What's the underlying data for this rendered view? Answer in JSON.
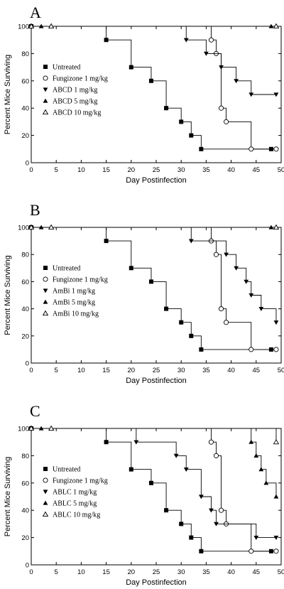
{
  "chart_data": [
    {
      "type": "line",
      "panel_label": "A",
      "xlabel": "Day Postinfection",
      "ylabel": "Percent Mice Surviving",
      "xlim": [
        0,
        50
      ],
      "ylim": [
        0,
        100
      ],
      "xticks": [
        0,
        5,
        10,
        15,
        20,
        25,
        30,
        35,
        40,
        45,
        50
      ],
      "yticks": [
        0,
        20,
        40,
        60,
        80,
        100
      ],
      "step": true,
      "legend_position": "left-middle",
      "series": [
        {
          "name": "Untreated",
          "marker": "square-filled",
          "x": [
            0,
            15,
            20,
            24,
            27,
            30,
            32,
            34,
            48
          ],
          "y": [
            100,
            90,
            70,
            60,
            40,
            30,
            20,
            10,
            10
          ]
        },
        {
          "name": "Fungizone 1 mg/kg",
          "marker": "circle-open",
          "x": [
            0,
            36,
            37,
            38,
            39,
            44,
            49
          ],
          "y": [
            100,
            90,
            80,
            40,
            30,
            10,
            10
          ]
        },
        {
          "name": "ABCD 1 mg/kg",
          "marker": "triangle-down-filled",
          "x": [
            0,
            31,
            35,
            38,
            41,
            44,
            49
          ],
          "y": [
            100,
            90,
            80,
            70,
            60,
            50,
            50
          ]
        },
        {
          "name": "ABCD 5 mg/kg",
          "marker": "triangle-up-filled",
          "x": [
            0,
            2,
            48
          ],
          "y": [
            100,
            100,
            100
          ]
        },
        {
          "name": "ABCD 10 mg/kg",
          "marker": "triangle-up-open",
          "x": [
            0,
            4,
            49
          ],
          "y": [
            100,
            100,
            100
          ]
        }
      ]
    },
    {
      "type": "line",
      "panel_label": "B",
      "xlabel": "Day Postinfection",
      "ylabel": "Percent Mice Surviving",
      "xlim": [
        0,
        50
      ],
      "ylim": [
        0,
        100
      ],
      "xticks": [
        0,
        5,
        10,
        15,
        20,
        25,
        30,
        35,
        40,
        45,
        50
      ],
      "yticks": [
        0,
        20,
        40,
        60,
        80,
        100
      ],
      "step": true,
      "legend_position": "left-middle",
      "series": [
        {
          "name": "Untreated",
          "marker": "square-filled",
          "x": [
            0,
            15,
            20,
            24,
            27,
            30,
            32,
            34,
            48
          ],
          "y": [
            100,
            90,
            70,
            60,
            40,
            30,
            20,
            10,
            10
          ]
        },
        {
          "name": "Fungizone 1 mg/kg",
          "marker": "circle-open",
          "x": [
            0,
            36,
            37,
            38,
            39,
            44,
            49
          ],
          "y": [
            100,
            90,
            80,
            40,
            30,
            10,
            10
          ]
        },
        {
          "name": "AmBi 1 mg/kg",
          "marker": "triangle-down-filled",
          "x": [
            0,
            32,
            39,
            41,
            43,
            44,
            46,
            49
          ],
          "y": [
            100,
            90,
            80,
            70,
            60,
            50,
            40,
            30
          ]
        },
        {
          "name": "AmBi 5 mg/kg",
          "marker": "triangle-up-filled",
          "x": [
            0,
            2,
            48
          ],
          "y": [
            100,
            100,
            100
          ]
        },
        {
          "name": "AmBi 10 mg/kg",
          "marker": "triangle-up-open",
          "x": [
            0,
            4,
            49
          ],
          "y": [
            100,
            100,
            100
          ]
        }
      ]
    },
    {
      "type": "line",
      "panel_label": "C",
      "xlabel": "Day Postinfection",
      "ylabel": "Percent Mice Surviving",
      "xlim": [
        0,
        50
      ],
      "ylim": [
        0,
        100
      ],
      "xticks": [
        0,
        5,
        10,
        15,
        20,
        25,
        30,
        35,
        40,
        45,
        50
      ],
      "yticks": [
        0,
        20,
        40,
        60,
        80,
        100
      ],
      "step": true,
      "legend_position": "left-middle",
      "series": [
        {
          "name": "Untreated",
          "marker": "square-filled",
          "x": [
            0,
            15,
            20,
            24,
            27,
            30,
            32,
            34,
            48
          ],
          "y": [
            100,
            90,
            70,
            60,
            40,
            30,
            20,
            10,
            10
          ]
        },
        {
          "name": "Fungizone 1 mg/kg",
          "marker": "circle-open",
          "x": [
            0,
            36,
            37,
            38,
            39,
            44,
            49
          ],
          "y": [
            100,
            90,
            80,
            40,
            30,
            10,
            10
          ]
        },
        {
          "name": "ABLC 1 mg/kg",
          "marker": "triangle-down-filled",
          "x": [
            0,
            21,
            29,
            31,
            34,
            36,
            37,
            45,
            49
          ],
          "y": [
            100,
            90,
            80,
            70,
            50,
            40,
            30,
            20,
            20
          ]
        },
        {
          "name": "ABLC 5 mg/kg",
          "marker": "triangle-up-filled",
          "x": [
            0,
            2,
            44,
            45,
            46,
            47,
            49
          ],
          "y": [
            100,
            100,
            90,
            80,
            70,
            60,
            50
          ]
        },
        {
          "name": "ABLC 10 mg/kg",
          "marker": "triangle-up-open",
          "x": [
            0,
            4,
            49
          ],
          "y": [
            100,
            100,
            90
          ]
        }
      ]
    }
  ]
}
